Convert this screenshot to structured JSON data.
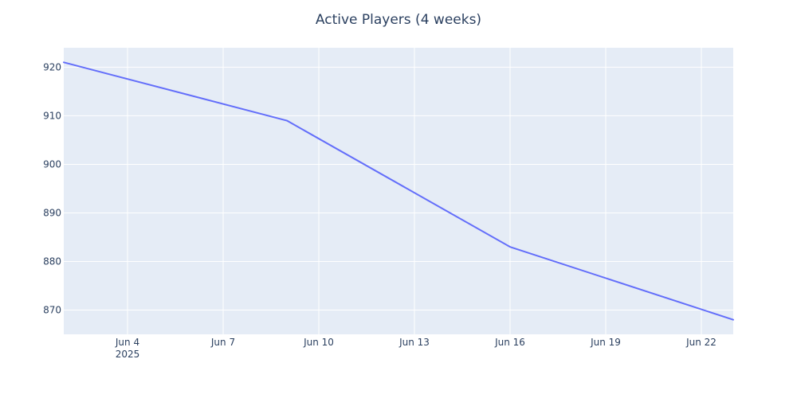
{
  "chart_data": {
    "type": "line",
    "title": "Active Players (4 weeks)",
    "xlabel": "",
    "ylabel": "",
    "x_ticks": [
      "Jun 4",
      "Jun 7",
      "Jun 10",
      "Jun 13",
      "Jun 16",
      "Jun 19",
      "Jun 22"
    ],
    "x_tick_dates": [
      "2025-06-04",
      "2025-06-07",
      "2025-06-10",
      "2025-06-13",
      "2025-06-16",
      "2025-06-19",
      "2025-06-22"
    ],
    "x_year_label": "2025",
    "y_ticks": [
      870,
      880,
      890,
      900,
      910,
      920
    ],
    "xlim": [
      "2025-06-02",
      "2025-06-23"
    ],
    "ylim": [
      865,
      924
    ],
    "grid": true,
    "legend": "none",
    "series": [
      {
        "color": "#636efa",
        "points": [
          {
            "x": "2025-06-02",
            "y": 921
          },
          {
            "x": "2025-06-09",
            "y": 909
          },
          {
            "x": "2025-06-16",
            "y": 883
          },
          {
            "x": "2025-06-23",
            "y": 868
          }
        ]
      }
    ]
  },
  "colors": {
    "plot_background": "#e5ecf6",
    "text": "#2a3f5f"
  }
}
